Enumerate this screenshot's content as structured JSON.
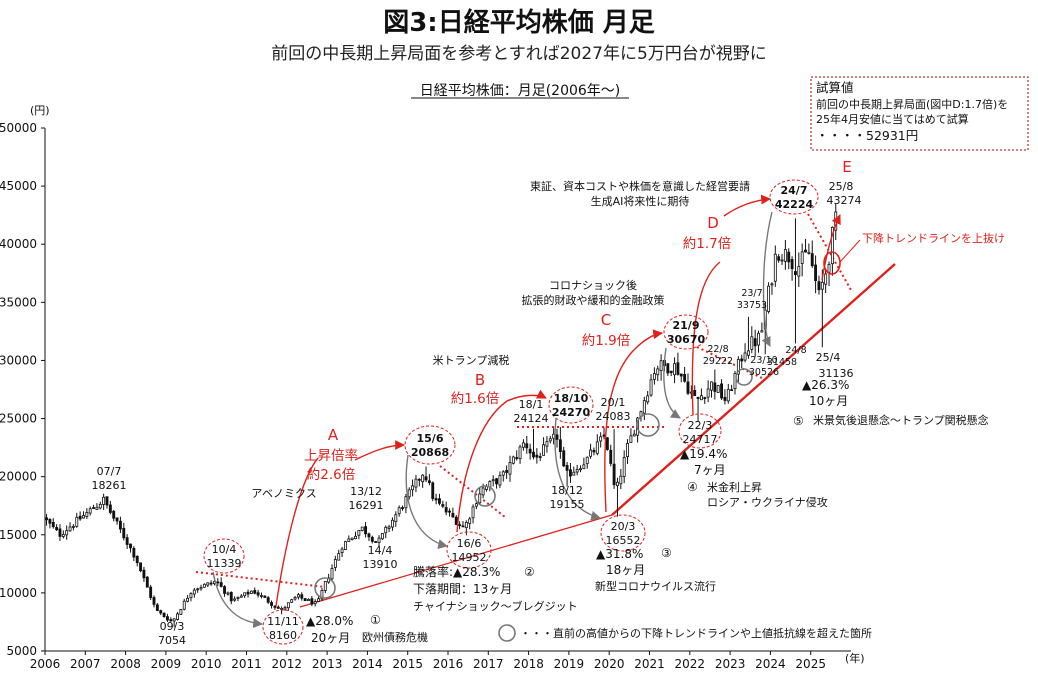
{
  "header": {
    "title": "図3:日経平均株価 月足",
    "subtitle": "前回の中長期上昇局面を参考とすれば2027年に5万円台が視野に",
    "chart_title": "日経平均株価：月足(2006年～)"
  },
  "info_box": {
    "title": "試算値",
    "line1": "前回の中長期上昇局面(図中D:1.7倍)を",
    "line2": "25年4月安値に当てはめて試算",
    "line3": "・・・・52931円"
  },
  "colors": {
    "up": "#ffffff",
    "down": "#111111",
    "accent": "#e0201b",
    "grey": "#888888"
  },
  "chart_data": {
    "type": "candlestick",
    "xlabel": "(年)",
    "ylabel": "(円)",
    "xlim": [
      2006,
      2026
    ],
    "ylim": [
      5000,
      50000
    ],
    "yticks": [
      5000,
      10000,
      15000,
      20000,
      25000,
      30000,
      35000,
      40000,
      45000,
      50000
    ],
    "ytick_labels": [
      "5000",
      "10000",
      "15000",
      "20000",
      "25000",
      "30000",
      "35000",
      "40000",
      "45000",
      "50000"
    ],
    "xticks": [
      "2006",
      "2007",
      "2008",
      "2009",
      "2010",
      "2011",
      "2012",
      "2013",
      "2014",
      "2015",
      "2016",
      "2017",
      "2018",
      "2019",
      "2020",
      "2021",
      "2022",
      "2023",
      "2024",
      "2025"
    ],
    "grid": false,
    "anchors": [
      {
        "t": 2006.0,
        "v": 16500
      },
      {
        "t": 2006.4,
        "v": 15000
      },
      {
        "t": 2007.5,
        "v": 18000
      },
      {
        "t": 2008.3,
        "v": 13000
      },
      {
        "t": 2008.8,
        "v": 8500
      },
      {
        "t": 2009.2,
        "v": 7500
      },
      {
        "t": 2009.7,
        "v": 10300
      },
      {
        "t": 2010.3,
        "v": 11000
      },
      {
        "t": 2010.7,
        "v": 9300
      },
      {
        "t": 2011.2,
        "v": 10200
      },
      {
        "t": 2011.5,
        "v": 9500
      },
      {
        "t": 2011.9,
        "v": 8500
      },
      {
        "t": 2012.3,
        "v": 9700
      },
      {
        "t": 2012.8,
        "v": 9000
      },
      {
        "t": 2012.95,
        "v": 10400
      },
      {
        "t": 2013.4,
        "v": 14000
      },
      {
        "t": 2013.9,
        "v": 15600
      },
      {
        "t": 2014.3,
        "v": 14300
      },
      {
        "t": 2014.9,
        "v": 17500
      },
      {
        "t": 2015.45,
        "v": 20500
      },
      {
        "t": 2015.7,
        "v": 18000
      },
      {
        "t": 2016.0,
        "v": 17000
      },
      {
        "t": 2016.45,
        "v": 15600
      },
      {
        "t": 2016.85,
        "v": 18800
      },
      {
        "t": 2017.4,
        "v": 20000
      },
      {
        "t": 2017.95,
        "v": 23000
      },
      {
        "t": 2018.2,
        "v": 21500
      },
      {
        "t": 2018.75,
        "v": 23500
      },
      {
        "t": 2018.95,
        "v": 20000
      },
      {
        "t": 2019.5,
        "v": 21500
      },
      {
        "t": 2019.95,
        "v": 23600
      },
      {
        "t": 2020.2,
        "v": 18500
      },
      {
        "t": 2020.5,
        "v": 22500
      },
      {
        "t": 2020.95,
        "v": 27000
      },
      {
        "t": 2021.2,
        "v": 29500
      },
      {
        "t": 2021.7,
        "v": 29500
      },
      {
        "t": 2022.2,
        "v": 26500
      },
      {
        "t": 2022.6,
        "v": 28000
      },
      {
        "t": 2022.95,
        "v": 26500
      },
      {
        "t": 2023.4,
        "v": 31000
      },
      {
        "t": 2023.8,
        "v": 32000
      },
      {
        "t": 2024.2,
        "v": 39500
      },
      {
        "t": 2024.5,
        "v": 39000
      },
      {
        "t": 2024.7,
        "v": 38000
      },
      {
        "t": 2025.0,
        "v": 39300
      },
      {
        "t": 2025.25,
        "v": 35500
      },
      {
        "t": 2025.45,
        "v": 38000
      },
      {
        "t": 2025.65,
        "v": 42000
      }
    ],
    "spikes": [
      {
        "t": 2007.5,
        "hi": 18261
      },
      {
        "t": 2009.2,
        "lo": 7054
      },
      {
        "t": 2010.3,
        "hi": 11339
      },
      {
        "t": 2011.85,
        "lo": 8160
      },
      {
        "t": 2015.45,
        "hi": 20868
      },
      {
        "t": 2016.45,
        "lo": 14952
      },
      {
        "t": 2018.05,
        "hi": 24124
      },
      {
        "t": 2018.75,
        "hi": 24270
      },
      {
        "t": 2018.95,
        "lo": 19155
      },
      {
        "t": 2020.05,
        "hi": 24083
      },
      {
        "t": 2020.2,
        "lo": 16552
      },
      {
        "t": 2021.7,
        "hi": 30670
      },
      {
        "t": 2022.2,
        "lo": 24717
      },
      {
        "t": 2022.6,
        "hi": 29222
      },
      {
        "t": 2023.45,
        "hi": 33753
      },
      {
        "t": 2023.8,
        "lo": 30526
      },
      {
        "t": 2024.55,
        "hi": 42224
      },
      {
        "t": 2024.6,
        "lo": 31458
      },
      {
        "t": 2025.25,
        "lo": 31136
      },
      {
        "t": 2025.62,
        "hi": 43274
      }
    ]
  },
  "labels": {
    "l_07_7": "07/7",
    "v_07_7": "18261",
    "l_09_3": "09/3",
    "v_09_3": "7054",
    "l_10_4": "10/4",
    "v_10_4": "11339",
    "l_11_11": "11/11",
    "v_11_11": "8160",
    "l_13_12": "13/12",
    "v_13_12": "16291",
    "l_14_4": "14/4",
    "v_14_4": "13910",
    "l_15_6": "15/6",
    "v_15_6": "20868",
    "l_16_6": "16/6",
    "v_16_6": "14952",
    "l_18_1": "18/1",
    "v_18_1": "24124",
    "l_18_10": "18/10",
    "v_18_10": "24270",
    "l_18_12": "18/12",
    "v_18_12": "19155",
    "l_20_1": "20/1",
    "v_20_1": "24083",
    "l_20_3": "20/3",
    "v_20_3": "16552",
    "l_21_9": "21/9",
    "v_21_9": "30670",
    "l_22_3": "22/3",
    "v_22_3": "24717",
    "l_22_8": "22/8",
    "v_22_8": "29222",
    "l_23_7": "23/7",
    "v_23_7": "33753",
    "l_23_10": "23/10",
    "v_23_10": "30526",
    "l_24_7": "24/7",
    "v_24_7": "42224",
    "l_24_8": "24/8",
    "v_24_8": "31458",
    "l_25_4": "25/4",
    "v_25_4": "31136",
    "l_25_8": "25/8",
    "v_25_8": "43274"
  },
  "phases": {
    "A_letter": "A",
    "A_mult1": "上昇倍率",
    "A_mult2": "約2.6倍",
    "B_letter": "B",
    "B_mult": "約1.6倍",
    "C_letter": "C",
    "C_mult": "約1.9倍",
    "D_letter": "D",
    "D_mult": "約1.7倍",
    "E_letter": "E"
  },
  "notes": {
    "abenomics": "アベノミクス",
    "trump_tax": "米トランプ減税",
    "corona1": "コロナショック後",
    "corona2": "拡張的財政や緩和的金融政策",
    "tse1": "東証、資本コストや株価を意識した経営要請",
    "tse2": "生成AI将来性に期待",
    "breakout": "下降トレンドラインを上抜け"
  },
  "drops": {
    "d1_pct": "▲28.0%",
    "d1_num": "①",
    "d1_dur": "20ヶ月",
    "d1_reason": "欧州債務危機",
    "d2_pct": "騰落率:▲28.3%",
    "d2_num": "②",
    "d2_dur": "下落期間：13ヶ月",
    "d2_reason": "チャイナショック～ブレグジット",
    "d3_pct": "▲31.8%",
    "d3_num": "③",
    "d3_dur": "18ヶ月",
    "d3_reason": "新型コロナウイルス流行",
    "d4_pct": "▲19.4%",
    "d4_dur": "7ヶ月",
    "d4_num": "④",
    "d4_reason1": "米金利上昇",
    "d4_reason2": "ロシア・ウクライナ侵攻",
    "d5_pct": "▲26.3%",
    "d5_dur": "10ヶ月",
    "d5_num": "⑤",
    "d5_reason": "米景気後退懸念～トランプ関税懸念"
  },
  "legend": {
    "text": "・・・直前の高値からの下降トレンドラインや上値抵抗線を超えた箇所"
  }
}
